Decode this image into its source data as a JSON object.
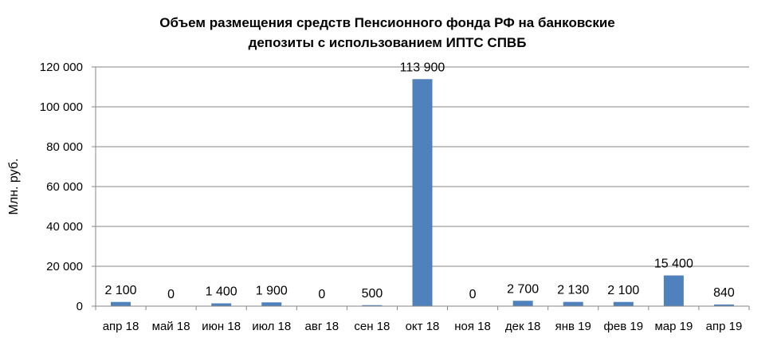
{
  "chart_data": {
    "type": "bar",
    "title_line1": "Объем размещения средств Пенсионного фонда РФ  на банковские",
    "title_line2": "депозиты с использованием ИПТС СПВБ",
    "xlabel": "",
    "ylabel": "Млн. руб.",
    "ylim": [
      0,
      120000
    ],
    "grid": true,
    "legend": "none",
    "bar_color": "#4f81bd",
    "categories": [
      "апр 18",
      "май 18",
      "июн 18",
      "июл 18",
      "авг 18",
      "сен 18",
      "окт 18",
      "ноя 18",
      "дек 18",
      "янв 19",
      "фев 19",
      "мар 19",
      "апр 19"
    ],
    "values": [
      2100,
      0,
      1400,
      1900,
      0,
      500,
      113900,
      0,
      2700,
      2130,
      2100,
      15400,
      840
    ],
    "value_labels": [
      "2 100",
      "0",
      "1 400",
      "1 900",
      "0",
      "500",
      "113 900",
      "0",
      "2 700",
      "2 130",
      "2 100",
      "15 400",
      "840"
    ],
    "yticks": [
      0,
      20000,
      40000,
      60000,
      80000,
      100000,
      120000
    ],
    "ytick_labels": [
      "0",
      "20 000",
      "40 000",
      "60 000",
      "80 000",
      "100 000",
      "120 000"
    ]
  }
}
